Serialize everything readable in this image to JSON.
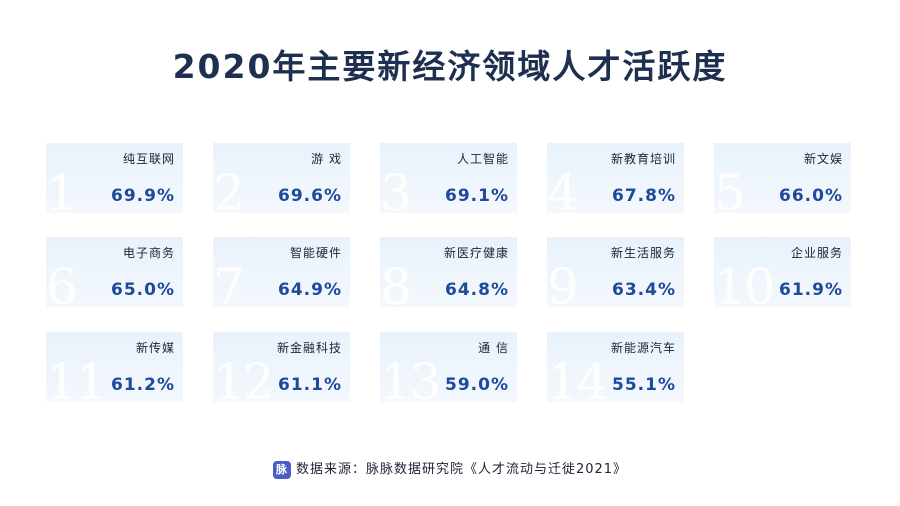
{
  "title": "2020年主要新经济领域人才活跃度",
  "cards": [
    {
      "rank": "1",
      "label": "纯互联网",
      "value": "69.9%"
    },
    {
      "rank": "2",
      "label": "游 戏",
      "value": "69.6%"
    },
    {
      "rank": "3",
      "label": "人工智能",
      "value": "69.1%"
    },
    {
      "rank": "4",
      "label": "新教育培训",
      "value": "67.8%"
    },
    {
      "rank": "5",
      "label": "新文娱",
      "value": "66.0%"
    },
    {
      "rank": "6",
      "label": "电子商务",
      "value": "65.0%"
    },
    {
      "rank": "7",
      "label": "智能硬件",
      "value": "64.9%"
    },
    {
      "rank": "8",
      "label": "新医疗健康",
      "value": "64.8%"
    },
    {
      "rank": "9",
      "label": "新生活服务",
      "value": "63.4%"
    },
    {
      "rank": "10",
      "label": "企业服务",
      "value": "61.9%"
    },
    {
      "rank": "11",
      "label": "新传媒",
      "value": "61.2%"
    },
    {
      "rank": "12",
      "label": "新金融科技",
      "value": "61.1%"
    },
    {
      "rank": "13",
      "label": "通 信",
      "value": "59.0%"
    },
    {
      "rank": "14",
      "label": "新能源汽车",
      "value": "55.1%"
    }
  ],
  "source": {
    "logo_text": "脉",
    "text": "数据来源：脉脉数据研究院《人才流动与迁徙2021》"
  }
}
